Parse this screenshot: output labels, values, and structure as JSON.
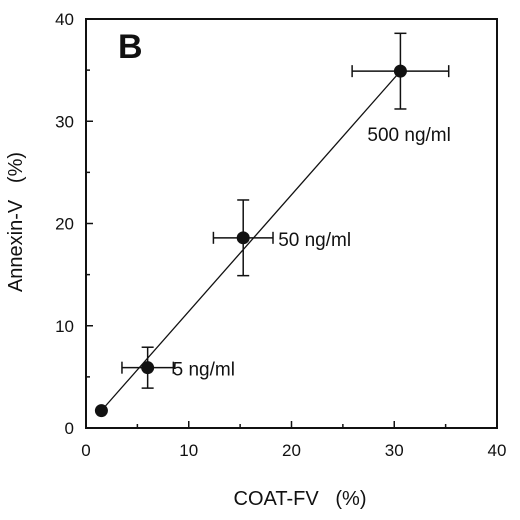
{
  "chart_data": {
    "type": "scatter",
    "panel_label": "B",
    "xlabel": "COAT-FV   (%)",
    "ylabel": "Annexin-V   (%)",
    "xlim": [
      0,
      40
    ],
    "ylim": [
      0,
      40
    ],
    "xticks": [
      "0",
      "10",
      "20",
      "30",
      "40"
    ],
    "yticks": [
      "0",
      "10",
      "20",
      "30",
      "40"
    ],
    "grid": false,
    "points": [
      {
        "x": 1.5,
        "y": 1.7,
        "xerr": 0,
        "yerr": 0,
        "label": ""
      },
      {
        "x": 6.0,
        "y": 5.9,
        "xerr": 2.5,
        "yerr": 2.0,
        "label": "5 ng/ml"
      },
      {
        "x": 15.3,
        "y": 18.6,
        "xerr": 2.9,
        "yerr": 3.7,
        "label": "50 ng/ml"
      },
      {
        "x": 30.6,
        "y": 34.9,
        "xerr": 4.7,
        "yerr": 3.7,
        "label": "500 ng/ml"
      }
    ],
    "fit_line": {
      "x": [
        1.5,
        30.6
      ],
      "y": [
        1.7,
        34.9
      ]
    }
  }
}
